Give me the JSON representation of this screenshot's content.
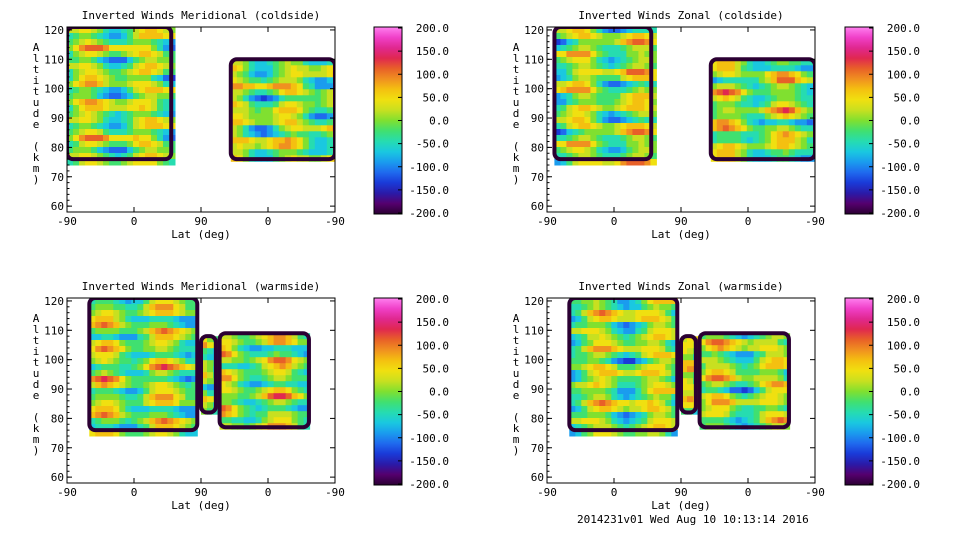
{
  "footer": "2014231v01 Wed Aug 10 10:13:14 2016",
  "color_scale": {
    "ticks": [
      "200.0",
      "150.0",
      "100.0",
      "50.0",
      "0.0",
      "-50.0",
      "-100.0",
      "-150.0",
      "-200.0"
    ],
    "colors": [
      "#2b0033",
      "#55006e",
      "#2a1aa8",
      "#1a3ad8",
      "#1f6aee",
      "#1a9cee",
      "#1ac8e0",
      "#26dcb0",
      "#40e070",
      "#80e030",
      "#c8e020",
      "#f0e010",
      "#f4c010",
      "#f09020",
      "#e86028",
      "#e02850",
      "#e02890",
      "#f040c8",
      "#ff80f0"
    ]
  },
  "chart_data": [
    {
      "type": "heatmap",
      "title": "Inverted Winds Meridional (coldside)",
      "xlabel": "Lat (deg)",
      "ylabel": "Altitude (km)",
      "xticks": [
        "-90",
        "0",
        "90",
        "0",
        "-90"
      ],
      "yticks": [
        "60",
        "70",
        "80",
        "90",
        "100",
        "110",
        "120"
      ],
      "ylim": [
        58,
        121
      ],
      "clim": [
        -200,
        200
      ],
      "segments": [
        {
          "x": [
            -90,
            50
          ],
          "ybottom": 76,
          "ytop": 121
        },
        {
          "x": [
            130,
            270
          ],
          "ybottom": 76,
          "ytop": 110
        }
      ]
    },
    {
      "type": "heatmap",
      "title": "Inverted Winds Zonal (coldside)",
      "xlabel": "Lat (deg)",
      "ylabel": "Altitude (km)",
      "xticks": [
        "-90",
        "0",
        "90",
        "0",
        "-90"
      ],
      "yticks": [
        "60",
        "70",
        "80",
        "90",
        "100",
        "110",
        "120"
      ],
      "ylim": [
        58,
        121
      ],
      "clim": [
        -200,
        200
      ],
      "segments": [
        {
          "x": [
            -80,
            50
          ],
          "ybottom": 76,
          "ytop": 121
        },
        {
          "x": [
            130,
            270
          ],
          "ybottom": 76,
          "ytop": 110
        }
      ]
    },
    {
      "type": "heatmap",
      "title": "Inverted Winds Meridional (warmside)",
      "xlabel": "Lat (deg)",
      "ylabel": "Altitude (km)",
      "xticks": [
        "-90",
        "0",
        "90",
        "0",
        "-90"
      ],
      "yticks": [
        "60",
        "70",
        "80",
        "90",
        "100",
        "110",
        "120"
      ],
      "ylim": [
        58,
        121
      ],
      "clim": [
        -200,
        200
      ],
      "segments": [
        {
          "x": [
            -60,
            85
          ],
          "ybottom": 76,
          "ytop": 121
        },
        {
          "x": [
            90,
            110
          ],
          "ybottom": 82,
          "ytop": 108
        },
        {
          "x": [
            115,
            235
          ],
          "ybottom": 77,
          "ytop": 109
        }
      ]
    },
    {
      "type": "heatmap",
      "title": "Inverted Winds Zonal (warmside)",
      "xlabel": "Lat (deg)",
      "ylabel": "Altitude (km)",
      "xticks": [
        "-90",
        "0",
        "90",
        "0",
        "-90"
      ],
      "yticks": [
        "60",
        "70",
        "80",
        "90",
        "100",
        "110",
        "120"
      ],
      "ylim": [
        58,
        121
      ],
      "clim": [
        -200,
        200
      ],
      "segments": [
        {
          "x": [
            -60,
            85
          ],
          "ybottom": 76,
          "ytop": 121
        },
        {
          "x": [
            90,
            110
          ],
          "ybottom": 82,
          "ytop": 108
        },
        {
          "x": [
            115,
            235
          ],
          "ybottom": 77,
          "ytop": 109
        }
      ]
    }
  ]
}
